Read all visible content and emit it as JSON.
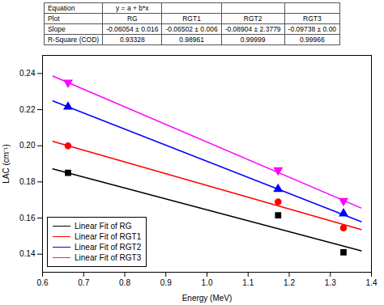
{
  "chart_data": {
    "type": "scatter",
    "xlabel": "Energy (MeV)",
    "ylabel": "LAC (cm⁻¹)",
    "xlim": [
      0.6,
      1.4
    ],
    "ylim": [
      0.13,
      0.25
    ],
    "xticks": [
      0.6,
      0.7,
      0.8,
      0.9,
      {
        "value": 1.0,
        "label": "1.0"
      },
      1.1,
      1.2,
      1.3,
      1.4
    ],
    "yticks": [
      0.14,
      0.16,
      0.18,
      {
        "value": 0.2,
        "label": "0.20"
      },
      0.22,
      0.24
    ],
    "grid": false,
    "legend": "lower left",
    "x": [
      0.662,
      1.173,
      1.332
    ],
    "series": [
      {
        "name": "Linear Fit of RG",
        "color": "#000000",
        "marker": "square",
        "values": [
          0.185,
          0.1615,
          0.141
        ],
        "fit": {
          "x": [
            0.625,
            1.375
          ],
          "values": [
            0.18723998,
            0.14183498
          ]
        }
      },
      {
        "name": "Linear Fit of RGT1",
        "color": "#ff0000",
        "marker": "circle",
        "values": [
          0.2,
          0.169,
          0.1545
        ],
        "fit": {
          "x": [
            0.625,
            1.375
          ],
          "values": [
            0.20240574,
            0.15364074
          ]
        }
      },
      {
        "name": "Linear Fit of RGT2",
        "color": "#0000ff",
        "marker": "triangle-up",
        "values": [
          0.2215,
          0.176,
          0.1625
        ],
        "fit": {
          "x": [
            0.625,
            1.375
          ],
          "values": [
            0.22479448,
            0.15801448
          ]
        }
      },
      {
        "name": "Linear Fit of RGT3",
        "color": "#ff00ff",
        "marker": "triangle-down",
        "values": [
          0.235,
          0.1865,
          0.1695
        ],
        "fit": {
          "x": [
            0.625,
            1.375
          ],
          "values": [
            0.23860306,
            0.16556806
          ]
        }
      }
    ],
    "table": [
      [
        "Equation",
        "y = a + b*x",
        "",
        "",
        ""
      ],
      [
        "Plot",
        "RG",
        "RGT1",
        "RGT2",
        "RGT3"
      ],
      [
        "Slope",
        "-0.06054 ± 0.016",
        "-0.06502 ± 0.006",
        "-0.08904 ± 2.3779",
        "-0.09738 ± 0.00"
      ],
      [
        "R-Square (COD)",
        "0.93328",
        "0.98961",
        "0.99999",
        "0.99966"
      ]
    ]
  }
}
